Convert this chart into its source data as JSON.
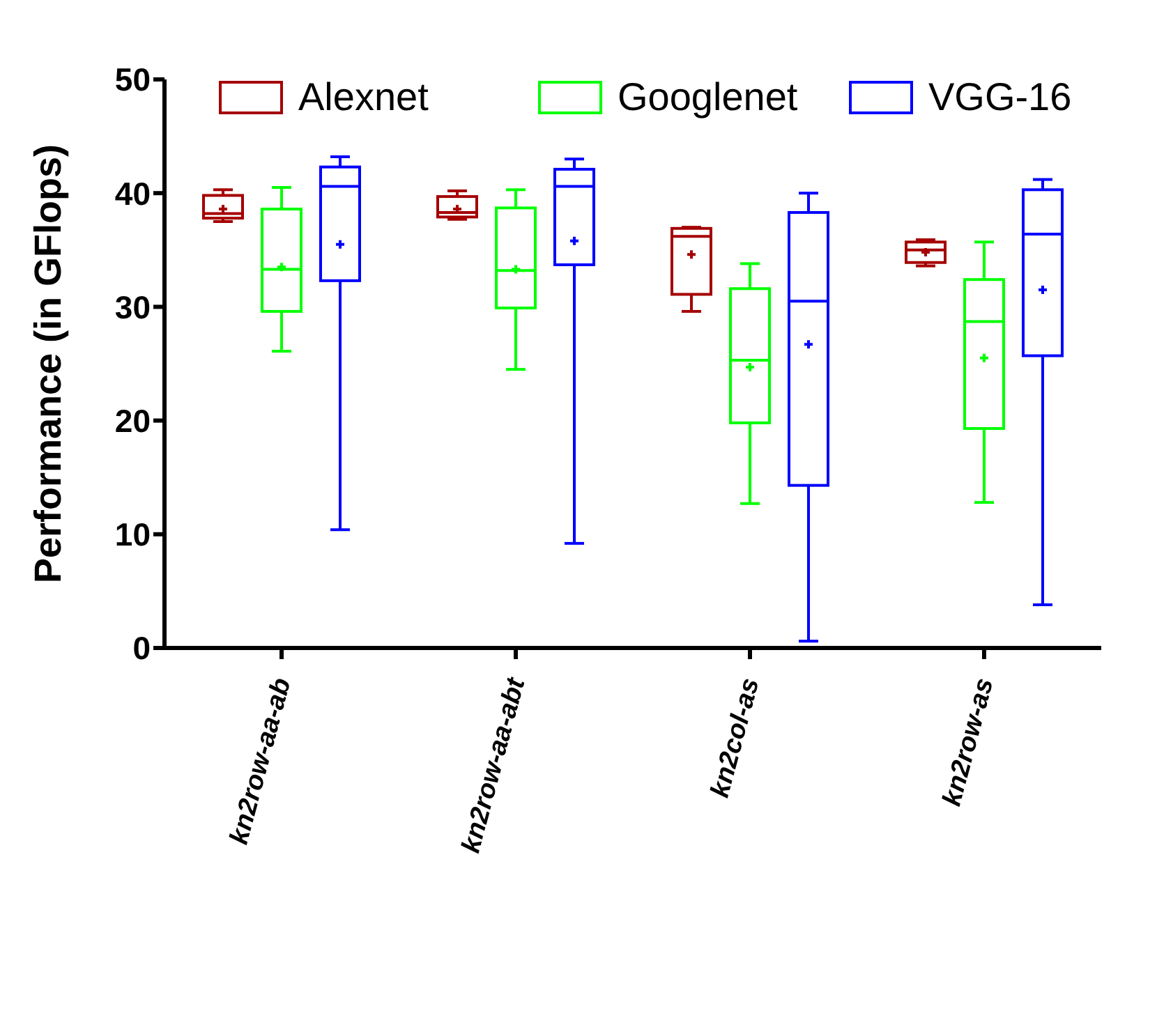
{
  "chart_data": {
    "type": "box",
    "ylabel": "Performance (in GFlops)",
    "categories": [
      "kn2row-aa-ab",
      "kn2row-aa-abt",
      "kn2col-as",
      "kn2row-as"
    ],
    "ylim": [
      0,
      50
    ],
    "yticks": [
      0,
      10,
      20,
      30,
      40,
      50
    ],
    "legend": "top",
    "series": [
      {
        "name": "Alexnet",
        "color": "#a50000",
        "boxes": [
          {
            "low": 37.5,
            "q1": 37.8,
            "median": 38.2,
            "q3": 39.8,
            "high": 40.3,
            "mean": 38.6
          },
          {
            "low": 37.7,
            "q1": 37.9,
            "median": 38.3,
            "q3": 39.7,
            "high": 40.2,
            "mean": 38.6
          },
          {
            "low": 29.6,
            "q1": 31.1,
            "median": 36.2,
            "q3": 36.9,
            "high": 37.0,
            "mean": 34.6
          },
          {
            "low": 33.6,
            "q1": 33.9,
            "median": 35.0,
            "q3": 35.7,
            "high": 35.9,
            "mean": 34.8
          }
        ]
      },
      {
        "name": "Googlenet",
        "color": "#00ff00",
        "boxes": [
          {
            "low": 26.1,
            "q1": 29.6,
            "median": 33.3,
            "q3": 38.6,
            "high": 40.5,
            "mean": 33.5
          },
          {
            "low": 24.5,
            "q1": 29.9,
            "median": 33.2,
            "q3": 38.7,
            "high": 40.3,
            "mean": 33.3
          },
          {
            "low": 12.7,
            "q1": 19.8,
            "median": 25.3,
            "q3": 31.6,
            "high": 33.8,
            "mean": 24.7
          },
          {
            "low": 12.8,
            "q1": 19.3,
            "median": 28.7,
            "q3": 32.4,
            "high": 35.7,
            "mean": 25.5
          }
        ]
      },
      {
        "name": "VGG-16",
        "color": "#0000ff",
        "boxes": [
          {
            "low": 10.4,
            "q1": 32.3,
            "median": 40.6,
            "q3": 42.3,
            "high": 43.2,
            "mean": 35.5
          },
          {
            "low": 9.2,
            "q1": 33.7,
            "median": 40.6,
            "q3": 42.1,
            "high": 43.0,
            "mean": 35.8
          },
          {
            "low": 0.6,
            "q1": 14.3,
            "median": 30.5,
            "q3": 38.3,
            "high": 40.0,
            "mean": 26.7
          },
          {
            "low": 3.8,
            "q1": 25.7,
            "median": 36.4,
            "q3": 40.3,
            "high": 41.2,
            "mean": 31.5
          }
        ]
      }
    ]
  }
}
